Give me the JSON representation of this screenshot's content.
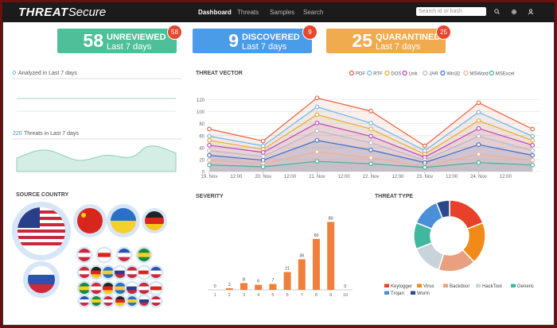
{
  "header": {
    "logo_bold": "THREAT",
    "logo_light": "Secure",
    "nav": [
      "Dashboard",
      "Threats",
      "Samples",
      "Search"
    ],
    "search_placeholder": "Search id or hash"
  },
  "cards": [
    {
      "value": 58,
      "label": "UNREVIEWED",
      "period": "Last 7 days",
      "badge": 58,
      "color": "#4fbf9a"
    },
    {
      "value": 9,
      "label": "DISCOVERED",
      "period": "Last 7 days",
      "badge": 9,
      "color": "#4a9be8"
    },
    {
      "value": 25,
      "label": "QUARANTINED",
      "period": "Last 7 days",
      "badge": 25,
      "color": "#f0ab4f"
    }
  ],
  "summary": [
    {
      "value": 0,
      "label": "Analyzed in Last 7 days"
    },
    {
      "value": 220,
      "label": "Threats in Last 7 days"
    }
  ],
  "source_country": {
    "title": "SOURCE COUNTRY"
  },
  "chart_data": [
    {
      "type": "line",
      "title": "THREAT VECTOR",
      "categories": [
        "19. Nov",
        "20. Nov",
        "21. Nov",
        "22. Nov",
        "23. Nov",
        "24. Nov",
        null
      ],
      "xticks": [
        "19. Nov",
        "12:00",
        "20. Nov",
        "12:00",
        "21. Nov",
        "12:00",
        "22. Nov",
        "12:00",
        "23. Nov",
        "12:00",
        "24. Nov",
        "12:00"
      ],
      "ylim": [
        0,
        130
      ],
      "yticks": [
        0,
        20,
        40,
        60,
        80,
        100,
        120
      ],
      "grid": true,
      "legend": "top",
      "series": [
        {
          "name": "PDF",
          "color": "#e8603c",
          "values": [
            71,
            51,
            123,
            101,
            43,
            115,
            71
          ]
        },
        {
          "name": "RTF",
          "color": "#6fb7e6",
          "values": [
            59,
            43,
            108,
            81,
            35,
            99,
            59
          ]
        },
        {
          "name": "DOS",
          "color": "#f0a830",
          "values": [
            52,
            37,
            95,
            71,
            29,
            85,
            52
          ]
        },
        {
          "name": "Link",
          "color": "#c040c0",
          "values": [
            44,
            32,
            81,
            59,
            24,
            72,
            44
          ]
        },
        {
          "name": "JAR",
          "color": "#b8b8c8",
          "values": [
            35,
            25,
            68,
            48,
            19,
            59,
            35
          ]
        },
        {
          "name": "Win32",
          "color": "#3c6ec8",
          "values": [
            27,
            19,
            52,
            36,
            15,
            45,
            27
          ]
        },
        {
          "name": "MSWord",
          "color": "#f0b090",
          "values": [
            19,
            13,
            33,
            23,
            9,
            29,
            19
          ]
        },
        {
          "name": "MSExcel",
          "color": "#40b0a0",
          "values": [
            11,
            8,
            17,
            13,
            7,
            15,
            11
          ]
        }
      ]
    },
    {
      "type": "bar",
      "title": "SEVERITY",
      "categories": [
        "1",
        "2",
        "3",
        "4",
        "5",
        "6",
        "7",
        "8",
        "9",
        "10"
      ],
      "values": [
        0,
        2,
        8,
        6,
        7,
        21,
        36,
        60,
        80,
        0
      ],
      "color": "#f07f3c",
      "ylim": [
        0,
        100
      ]
    },
    {
      "type": "pie",
      "title": "THREAT TYPE",
      "categories": [
        "Keylogger",
        "Virus",
        "Backdoor",
        "HackTool",
        "Generic",
        "Trojan",
        "Worm"
      ],
      "values": [
        19,
        19,
        17,
        14,
        12,
        13,
        6
      ],
      "colors": [
        "#e8402a",
        "#f28a1a",
        "#e8a080",
        "#c8d4dc",
        "#40b8a0",
        "#4a90d8",
        "#2a4a8c"
      ],
      "donut": true
    }
  ]
}
